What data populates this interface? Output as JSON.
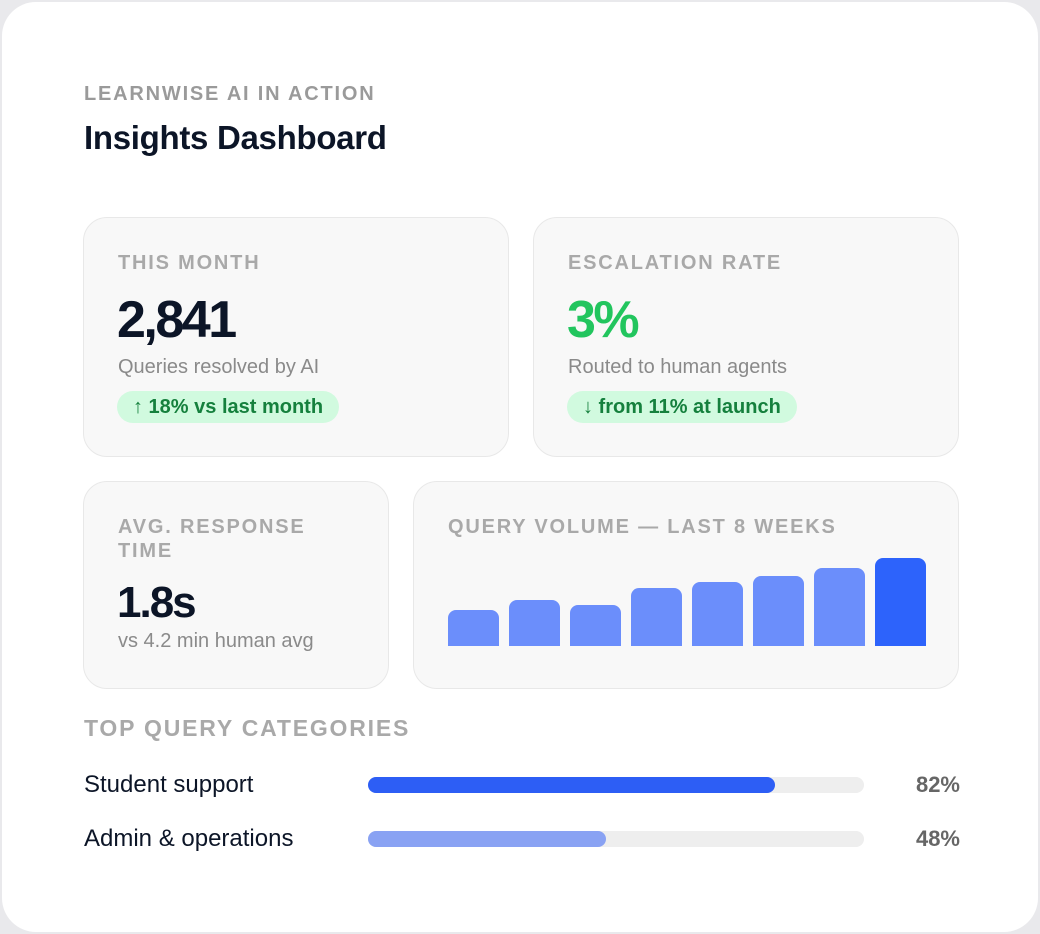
{
  "header": {
    "eyebrow": "LEARNWISE AI IN ACTION",
    "title": "Insights Dashboard"
  },
  "stats": {
    "this_month": {
      "label": "THIS MONTH",
      "value": "2,841",
      "caption": "Queries resolved by AI",
      "badge": "↑ 18% vs last month"
    },
    "escalation": {
      "label": "ESCALATION RATE",
      "value": "3%",
      "caption": "Routed to human agents",
      "badge": "↓ from 11% at launch"
    },
    "response_time": {
      "label": "AVG. RESPONSE TIME",
      "value": "1.8s",
      "caption": "vs 4.2 min human avg"
    }
  },
  "volume_chart": {
    "label": "QUERY VOLUME — LAST 8 WEEKS"
  },
  "chart_data": {
    "type": "bar",
    "categories": [
      "",
      "",
      "",
      "",
      "",
      "",
      "",
      ""
    ],
    "values": [
      41,
      52,
      47,
      66,
      73,
      79,
      89,
      100
    ],
    "ylim": [
      0,
      100
    ],
    "highlight_index": 7,
    "colors": {
      "bar": "#6b8efb",
      "highlight": "#2d63fb"
    },
    "title": "",
    "xlabel": "",
    "ylabel": "",
    "grid": false
  },
  "categories": {
    "label": "TOP QUERY CATEGORIES",
    "items": [
      {
        "name": "Student support",
        "percent_text": "82%",
        "value": 82,
        "color": "#2d5ef5"
      },
      {
        "name": "Admin & operations",
        "percent_text": "48%",
        "value": 48,
        "color": "#89a2f3"
      }
    ]
  },
  "colors": {
    "accent": "#2d63fb",
    "positive": "#22c55e",
    "badge_bg": "#d1fadf",
    "badge_text": "#15803d"
  }
}
